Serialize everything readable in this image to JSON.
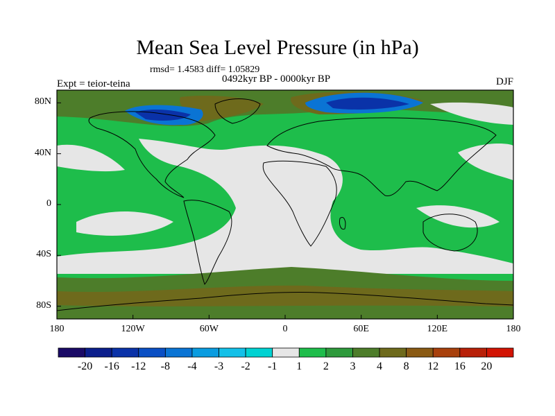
{
  "title": "Mean Sea Level Pressure (in hPa)",
  "stats": "rmsd= 1.4583 diff= 1.05829",
  "period": "0492kyr BP - 0000kyr BP",
  "experiment": "Expt = teior-teina",
  "season": "DJF",
  "axes": {
    "lat_ticks": [
      {
        "label": "80N",
        "value": 80
      },
      {
        "label": "40N",
        "value": 40
      },
      {
        "label": "0",
        "value": 0
      },
      {
        "label": "40S",
        "value": -40
      },
      {
        "label": "80S",
        "value": -80
      }
    ],
    "lon_ticks": [
      {
        "label": "180",
        "value": -180
      },
      {
        "label": "120W",
        "value": -120
      },
      {
        "label": "60W",
        "value": -60
      },
      {
        "label": "0",
        "value": 0
      },
      {
        "label": "60E",
        "value": 60
      },
      {
        "label": "120E",
        "value": 120
      },
      {
        "label": "180",
        "value": 180
      }
    ],
    "lon_range": [
      -180,
      180
    ],
    "lat_range": [
      -90,
      90
    ]
  },
  "colorbar": {
    "colors": [
      "#1a0a66",
      "#0b1e8c",
      "#0a32a8",
      "#0a4fc4",
      "#0a74d4",
      "#0a9ce0",
      "#14c0e8",
      "#00d2d2",
      "#e6e6e6",
      "#1ebd4b",
      "#2e9a3c",
      "#4d7d2a",
      "#6e6a1c",
      "#8a5a14",
      "#a8400c",
      "#b82008",
      "#d21404"
    ],
    "labels": [
      "-20",
      "-16",
      "-12",
      "-8",
      "-4",
      "-3",
      "-2",
      "-1",
      "1",
      "2",
      "3",
      "4",
      "8",
      "12",
      "16",
      "20"
    ]
  },
  "palette": {
    "neutral": "#e6e6e6",
    "green": "#1ebd4b",
    "olive": "#4d7d2a",
    "brown": "#6e6a1c",
    "blue_dark": "#0a32a8",
    "blue_mid": "#0a74d4",
    "white": "#ffffff",
    "coast": "#000000"
  }
}
